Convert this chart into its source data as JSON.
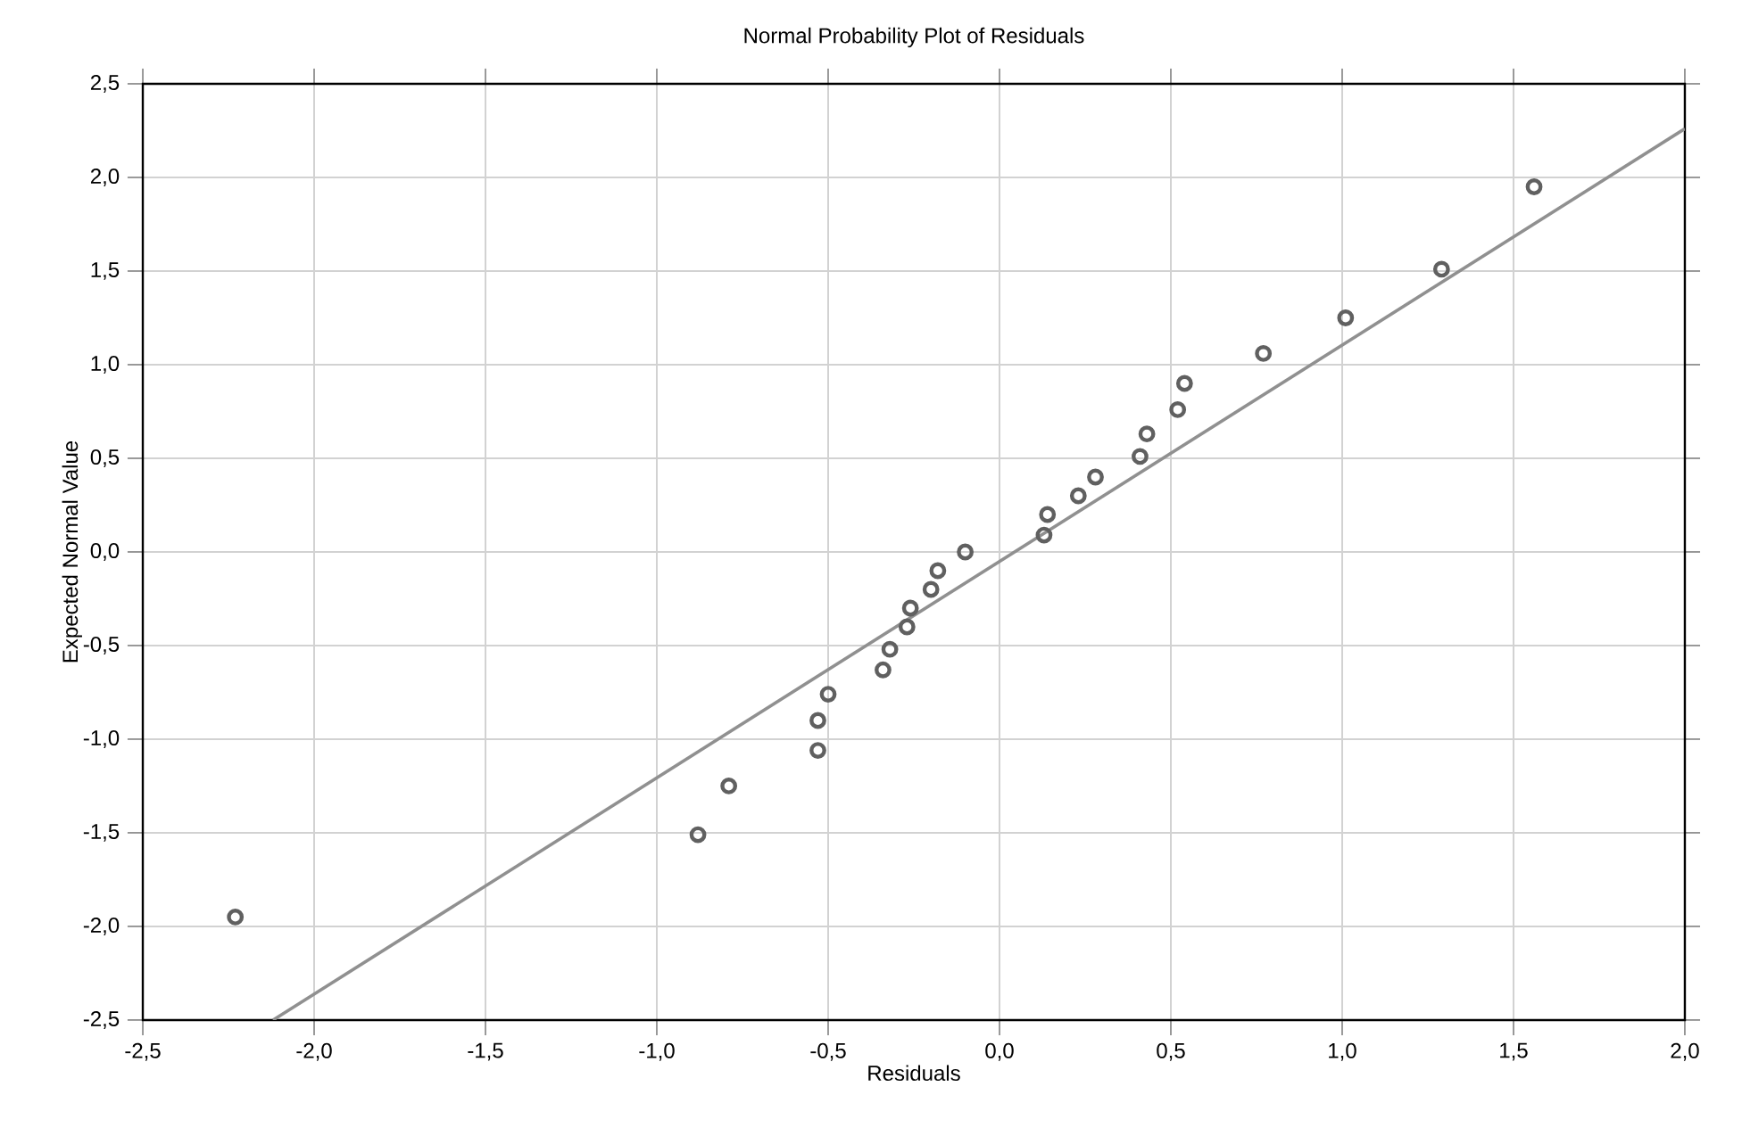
{
  "chart_data": {
    "type": "scatter",
    "title": "Normal Probability Plot of Residuals",
    "xlabel": "Residuals",
    "ylabel": "Expected Normal Value",
    "xlim": [
      -2.5,
      2.0
    ],
    "ylim": [
      -2.5,
      2.5
    ],
    "xticks": [
      {
        "value": -2.5,
        "label": "-2,5"
      },
      {
        "value": -2.0,
        "label": "-2,0"
      },
      {
        "value": -1.5,
        "label": "-1,5"
      },
      {
        "value": -1.0,
        "label": "-1,0"
      },
      {
        "value": -0.5,
        "label": "-0,5"
      },
      {
        "value": 0.0,
        "label": "0,0"
      },
      {
        "value": 0.5,
        "label": "0,5"
      },
      {
        "value": 1.0,
        "label": "1,0"
      },
      {
        "value": 1.5,
        "label": "1,5"
      },
      {
        "value": 2.0,
        "label": "2,0"
      }
    ],
    "yticks": [
      {
        "value": -2.5,
        "label": "-2,5"
      },
      {
        "value": -2.0,
        "label": "-2,0"
      },
      {
        "value": -1.5,
        "label": "-1,5"
      },
      {
        "value": -1.0,
        "label": "-1,0"
      },
      {
        "value": -0.5,
        "label": "-0,5"
      },
      {
        "value": 0.0,
        "label": "0,0"
      },
      {
        "value": 0.5,
        "label": "0,5"
      },
      {
        "value": 1.0,
        "label": "1,0"
      },
      {
        "value": 1.5,
        "label": "1,5"
      },
      {
        "value": 2.0,
        "label": "2,0"
      },
      {
        "value": 2.5,
        "label": "2,5"
      }
    ],
    "grid": true,
    "series": [
      {
        "marker": "circle",
        "color": "#606060",
        "x": [
          -2.23,
          -0.88,
          -0.79,
          -0.53,
          -0.53,
          -0.5,
          -0.34,
          -0.32,
          -0.27,
          -0.26,
          -0.2,
          -0.18,
          -0.1,
          0.13,
          0.14,
          0.23,
          0.28,
          0.41,
          0.43,
          0.52,
          0.54,
          0.77,
          1.01,
          1.29,
          1.56
        ],
        "values": [
          -1.95,
          -1.51,
          -1.25,
          -1.06,
          -0.9,
          -0.76,
          -0.63,
          -0.52,
          -0.4,
          -0.3,
          -0.2,
          -0.1,
          0.0,
          0.09,
          0.2,
          0.3,
          0.4,
          0.51,
          0.63,
          0.76,
          0.9,
          1.06,
          1.25,
          1.51,
          1.95
        ]
      },
      {
        "type": "line",
        "color": "#909090",
        "x": [
          -2.12,
          2.0
        ],
        "values": [
          -2.5,
          2.26
        ]
      }
    ]
  }
}
